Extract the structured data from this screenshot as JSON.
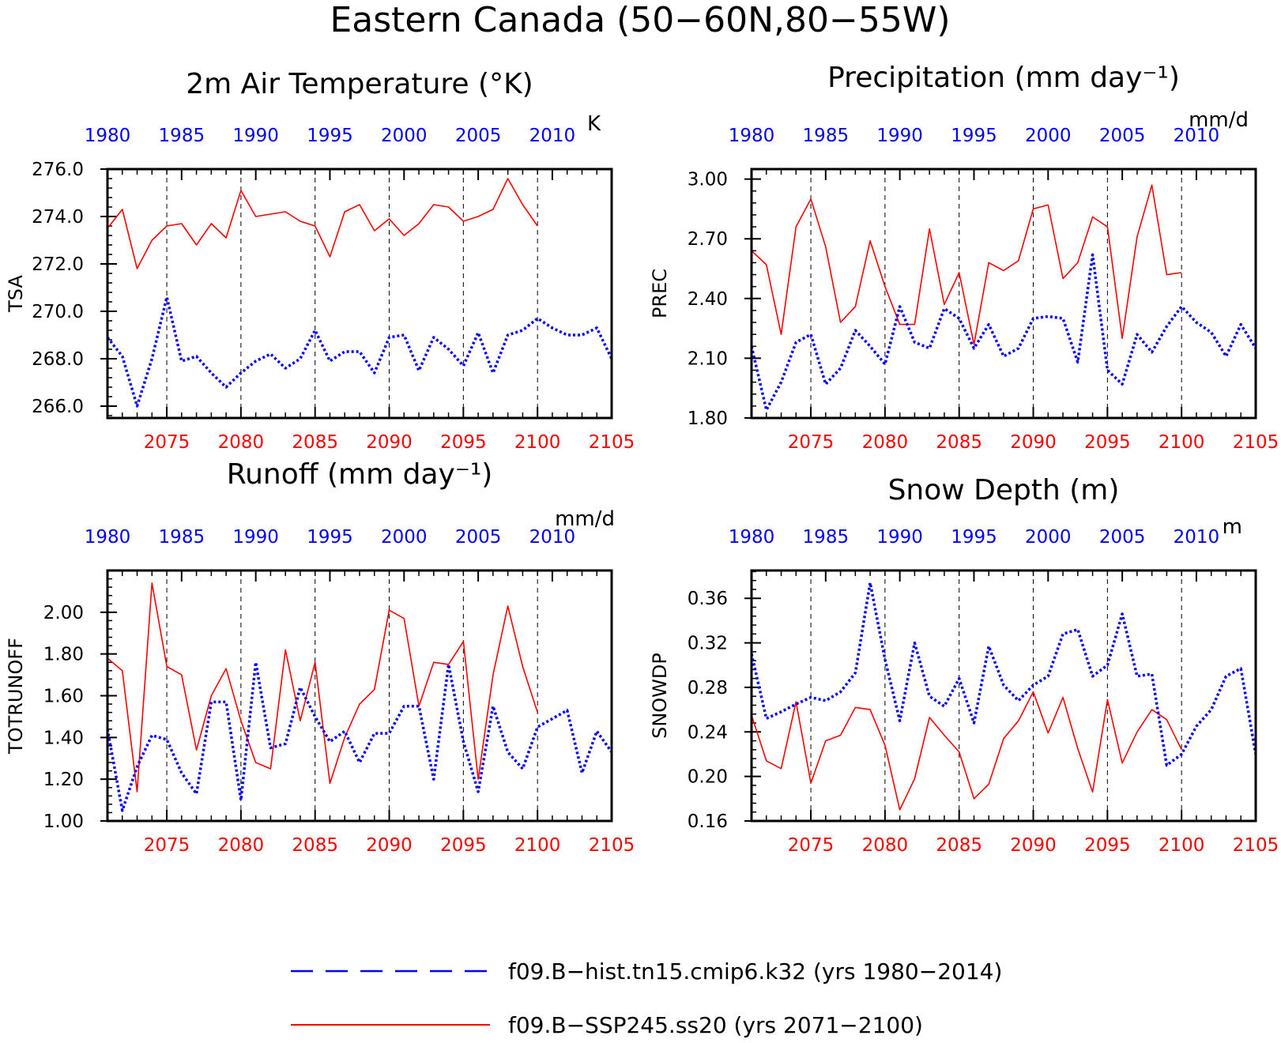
{
  "title": "Eastern Canada (50−60N,80−55W)",
  "legend": {
    "hist": "f09.B−hist.tn15.cmip6.k32 (yrs 1980−2014)",
    "ssp": "f09.B−SSP245.ss20 (yrs 2071−2100)"
  },
  "colors": {
    "hist": "#0000ff",
    "ssp": "#ff0000",
    "axis": "#000000"
  },
  "chart_data": [
    {
      "type": "line",
      "title": "2m Air Temperature (°K)",
      "ylabel": "TSA",
      "units": "K",
      "ylim": [
        265.5,
        276.0
      ],
      "yticks": [
        276.0,
        274.0,
        272.0,
        270.0,
        268.0,
        266.0
      ],
      "ytick_labels": [
        "276.0",
        "274.0",
        "272.0",
        "270.0",
        "268.0",
        "266.0"
      ],
      "bottom_axis": {
        "xlim": [
          2071,
          2105
        ],
        "ticks": [
          2075,
          2080,
          2085,
          2090,
          2095,
          2100,
          2105
        ]
      },
      "top_axis": {
        "xlim": [
          1980,
          2014
        ],
        "ticks": [
          1980,
          1985,
          1990,
          1995,
          2000,
          2005,
          2010
        ]
      },
      "series": [
        {
          "name": "f09.B−SSP245.ss20",
          "x": [
            2071,
            2072,
            2073,
            2074,
            2075,
            2076,
            2077,
            2078,
            2079,
            2080,
            2081,
            2082,
            2083,
            2084,
            2085,
            2086,
            2087,
            2088,
            2089,
            2090,
            2091,
            2092,
            2093,
            2094,
            2095,
            2096,
            2097,
            2098,
            2099,
            2100
          ],
          "values": [
            273.5,
            274.3,
            271.8,
            273.0,
            273.6,
            273.7,
            272.8,
            273.7,
            273.1,
            275.1,
            274.0,
            274.1,
            274.2,
            273.8,
            273.6,
            272.3,
            274.2,
            274.5,
            273.4,
            273.9,
            273.2,
            273.7,
            274.5,
            274.4,
            273.8,
            274.0,
            274.3,
            275.6,
            274.5,
            273.6
          ]
        },
        {
          "name": "f09.B−hist.tn15.cmip6.k32",
          "x": [
            1980,
            1981,
            1982,
            1983,
            1984,
            1985,
            1986,
            1987,
            1988,
            1989,
            1990,
            1991,
            1992,
            1993,
            1994,
            1995,
            1996,
            1997,
            1998,
            1999,
            2000,
            2001,
            2002,
            2003,
            2004,
            2005,
            2006,
            2007,
            2008,
            2009,
            2010,
            2011,
            2012,
            2013,
            2014
          ],
          "values": [
            268.9,
            268.1,
            266.0,
            268.0,
            270.6,
            267.9,
            268.1,
            267.4,
            266.8,
            267.4,
            267.9,
            268.2,
            267.6,
            268.0,
            269.2,
            267.9,
            268.3,
            268.3,
            267.4,
            268.9,
            269.0,
            267.5,
            268.9,
            268.4,
            267.7,
            269.1,
            267.4,
            269.0,
            269.2,
            269.7,
            269.3,
            269.0,
            269.0,
            269.3,
            268.0
          ]
        }
      ]
    },
    {
      "type": "line",
      "title": "Precipitation (mm day⁻¹)",
      "ylabel": "PREC",
      "units": "mm/d",
      "ylim": [
        1.8,
        3.05
      ],
      "yticks": [
        3.0,
        2.7,
        2.4,
        2.1,
        1.8
      ],
      "ytick_labels": [
        "3.00",
        "2.70",
        "2.40",
        "2.10",
        "1.80"
      ],
      "bottom_axis": {
        "xlim": [
          2071,
          2105
        ],
        "ticks": [
          2075,
          2080,
          2085,
          2090,
          2095,
          2100,
          2105
        ]
      },
      "top_axis": {
        "xlim": [
          1980,
          2014
        ],
        "ticks": [
          1980,
          1985,
          1990,
          1995,
          2000,
          2005,
          2010
        ]
      },
      "series": [
        {
          "name": "f09.B−SSP245.ss20",
          "x": [
            2071,
            2072,
            2073,
            2074,
            2075,
            2076,
            2077,
            2078,
            2079,
            2080,
            2081,
            2082,
            2083,
            2084,
            2085,
            2086,
            2087,
            2088,
            2089,
            2090,
            2091,
            2092,
            2093,
            2094,
            2095,
            2096,
            2097,
            2098,
            2099,
            2100
          ],
          "values": [
            2.64,
            2.57,
            2.22,
            2.76,
            2.9,
            2.66,
            2.28,
            2.36,
            2.69,
            2.46,
            2.27,
            2.27,
            2.75,
            2.37,
            2.53,
            2.17,
            2.58,
            2.54,
            2.59,
            2.85,
            2.87,
            2.5,
            2.58,
            2.81,
            2.76,
            2.2,
            2.71,
            2.97,
            2.52,
            2.53
          ]
        },
        {
          "name": "f09.B−hist.tn15.cmip6.k32",
          "x": [
            1980,
            1981,
            1982,
            1983,
            1984,
            1985,
            1986,
            1987,
            1988,
            1989,
            1990,
            1991,
            1992,
            1993,
            1994,
            1995,
            1996,
            1997,
            1998,
            1999,
            2000,
            2001,
            2002,
            2003,
            2004,
            2005,
            2006,
            2007,
            2008,
            2009,
            2010,
            2011,
            2012,
            2013,
            2014
          ],
          "values": [
            2.16,
            1.84,
            1.98,
            2.18,
            2.22,
            1.97,
            2.05,
            2.24,
            2.16,
            2.07,
            2.36,
            2.18,
            2.15,
            2.35,
            2.3,
            2.15,
            2.27,
            2.11,
            2.15,
            2.3,
            2.31,
            2.3,
            2.08,
            2.62,
            2.04,
            1.97,
            2.22,
            2.13,
            2.26,
            2.36,
            2.28,
            2.23,
            2.11,
            2.27,
            2.15
          ]
        }
      ]
    },
    {
      "type": "line",
      "title": "Runoff (mm day⁻¹)",
      "ylabel": "TOTRUNOFF",
      "units": "mm/d",
      "ylim": [
        1.0,
        2.2
      ],
      "yticks": [
        2.0,
        1.8,
        1.6,
        1.4,
        1.2,
        1.0
      ],
      "ytick_labels": [
        "2.00",
        "1.80",
        "1.60",
        "1.40",
        "1.20",
        "1.00"
      ],
      "bottom_axis": {
        "xlim": [
          2071,
          2105
        ],
        "ticks": [
          2075,
          2080,
          2085,
          2090,
          2095,
          2100,
          2105
        ]
      },
      "top_axis": {
        "xlim": [
          1980,
          2014
        ],
        "ticks": [
          1980,
          1985,
          1990,
          1995,
          2000,
          2005,
          2010
        ]
      },
      "series": [
        {
          "name": "f09.B−SSP245.ss20",
          "x": [
            2071,
            2072,
            2073,
            2074,
            2075,
            2076,
            2077,
            2078,
            2079,
            2080,
            2081,
            2082,
            2083,
            2084,
            2085,
            2086,
            2087,
            2088,
            2089,
            2090,
            2091,
            2092,
            2093,
            2094,
            2095,
            2096,
            2097,
            2098,
            2099,
            2100
          ],
          "values": [
            1.78,
            1.72,
            1.14,
            2.14,
            1.74,
            1.7,
            1.34,
            1.6,
            1.73,
            1.48,
            1.28,
            1.25,
            1.82,
            1.48,
            1.76,
            1.18,
            1.4,
            1.56,
            1.63,
            2.01,
            1.97,
            1.55,
            1.76,
            1.75,
            1.86,
            1.2,
            1.7,
            2.03,
            1.74,
            1.52
          ]
        },
        {
          "name": "f09.B−hist.tn15.cmip6.k32",
          "x": [
            1980,
            1981,
            1982,
            1983,
            1984,
            1985,
            1986,
            1987,
            1988,
            1989,
            1990,
            1991,
            1992,
            1993,
            1994,
            1995,
            1996,
            1997,
            1998,
            1999,
            2000,
            2001,
            2002,
            2003,
            2004,
            2005,
            2006,
            2007,
            2008,
            2009,
            2010,
            2011,
            2012,
            2013,
            2014
          ],
          "values": [
            1.44,
            1.05,
            1.26,
            1.41,
            1.39,
            1.23,
            1.13,
            1.57,
            1.57,
            1.1,
            1.76,
            1.35,
            1.37,
            1.64,
            1.5,
            1.38,
            1.43,
            1.28,
            1.42,
            1.42,
            1.55,
            1.55,
            1.2,
            1.75,
            1.38,
            1.14,
            1.55,
            1.33,
            1.25,
            1.45,
            1.49,
            1.53,
            1.23,
            1.43,
            1.33
          ]
        }
      ]
    },
    {
      "type": "line",
      "title": "Snow Depth (m)",
      "ylabel": "SNOWDP",
      "units": "m",
      "ylim": [
        0.16,
        0.385
      ],
      "yticks": [
        0.36,
        0.32,
        0.28,
        0.24,
        0.2,
        0.16
      ],
      "ytick_labels": [
        "0.36",
        "0.32",
        "0.28",
        "0.24",
        "0.20",
        "0.16"
      ],
      "bottom_axis": {
        "xlim": [
          2071,
          2105
        ],
        "ticks": [
          2075,
          2080,
          2085,
          2090,
          2095,
          2100,
          2105
        ]
      },
      "top_axis": {
        "xlim": [
          1980,
          2014
        ],
        "ticks": [
          1980,
          1985,
          1990,
          1995,
          2000,
          2005,
          2010
        ]
      },
      "series": [
        {
          "name": "f09.B−SSP245.ss20",
          "x": [
            2071,
            2072,
            2073,
            2074,
            2075,
            2076,
            2077,
            2078,
            2079,
            2080,
            2081,
            2082,
            2083,
            2084,
            2085,
            2086,
            2087,
            2088,
            2089,
            2090,
            2091,
            2092,
            2093,
            2094,
            2095,
            2096,
            2097,
            2098,
            2099,
            2100
          ],
          "values": [
            0.255,
            0.214,
            0.207,
            0.267,
            0.194,
            0.232,
            0.237,
            0.262,
            0.26,
            0.228,
            0.17,
            0.198,
            0.253,
            0.237,
            0.222,
            0.18,
            0.193,
            0.234,
            0.25,
            0.276,
            0.239,
            0.271,
            0.225,
            0.186,
            0.269,
            0.212,
            0.24,
            0.26,
            0.251,
            0.224
          ]
        },
        {
          "name": "f09.B−hist.tn15.cmip6.k32",
          "x": [
            1980,
            1981,
            1982,
            1983,
            1984,
            1985,
            1986,
            1987,
            1988,
            1989,
            1990,
            1991,
            1992,
            1993,
            1994,
            1995,
            1996,
            1997,
            1998,
            1999,
            2000,
            2001,
            2002,
            2003,
            2004,
            2005,
            2006,
            2007,
            2008,
            2009,
            2010,
            2011,
            2012,
            2013,
            2014
          ],
          "values": [
            0.31,
            0.252,
            0.258,
            0.265,
            0.271,
            0.268,
            0.276,
            0.293,
            0.374,
            0.305,
            0.25,
            0.32,
            0.272,
            0.263,
            0.288,
            0.248,
            0.317,
            0.282,
            0.268,
            0.282,
            0.29,
            0.328,
            0.332,
            0.29,
            0.3,
            0.346,
            0.29,
            0.292,
            0.21,
            0.22,
            0.245,
            0.26,
            0.29,
            0.297,
            0.22
          ]
        }
      ]
    }
  ]
}
